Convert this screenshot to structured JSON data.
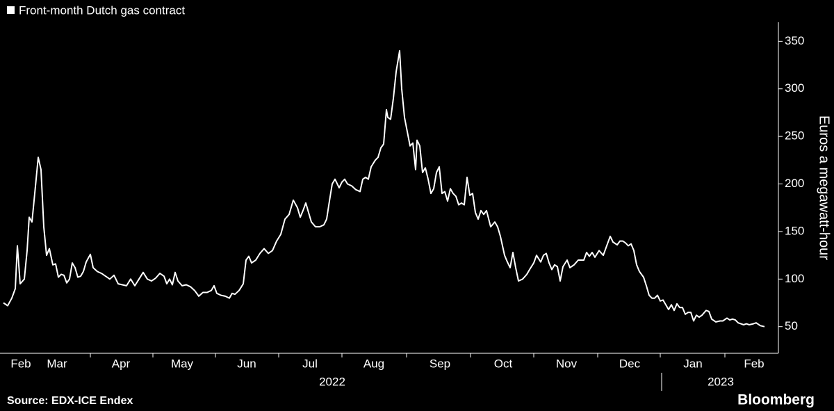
{
  "chart_data": {
    "type": "line",
    "y_axis_label": "Euros a megawatt-hour",
    "source": "Source: EDX-ICE Endex",
    "brand": "Bloomberg",
    "background": "#000000",
    "legend": "top-left",
    "x": [
      5,
      11,
      17,
      22,
      25,
      29,
      35,
      39,
      42,
      46,
      50,
      55,
      59,
      63,
      67,
      71,
      76,
      80,
      84,
      88,
      92,
      96,
      100,
      104,
      108,
      112,
      116,
      120,
      124,
      130,
      134,
      140,
      146,
      152,
      158,
      164,
      170,
      176,
      182,
      188,
      194,
      200,
      206,
      212,
      218,
      224,
      230,
      236,
      240,
      244,
      248,
      252,
      256,
      262,
      268,
      274,
      280,
      286,
      292,
      298,
      304,
      308,
      312,
      318,
      324,
      330,
      334,
      338,
      344,
      350,
      354,
      358,
      362,
      368,
      374,
      380,
      386,
      392,
      398,
      404,
      410,
      416,
      422,
      428,
      432,
      436,
      440,
      444,
      448,
      454,
      460,
      466,
      470,
      474,
      478,
      482,
      488,
      492,
      496,
      500,
      506,
      512,
      518,
      522,
      526,
      530,
      534,
      540,
      544,
      548,
      552,
      556,
      558,
      562,
      566,
      570,
      575,
      578,
      582,
      586,
      590,
      594,
      598,
      600,
      604,
      608,
      612,
      616,
      620,
      624,
      628,
      632,
      636,
      640,
      644,
      648,
      652,
      656,
      660,
      664,
      668,
      672,
      676,
      680,
      684,
      688,
      692,
      696,
      700,
      706,
      712,
      716,
      720,
      726,
      730,
      734,
      738,
      742,
      746,
      752,
      758,
      762,
      768,
      772,
      778,
      782,
      786,
      790,
      794,
      798,
      802,
      806,
      810,
      816,
      820,
      826,
      832,
      840,
      844,
      848,
      852,
      856,
      862,
      868,
      874,
      878,
      882,
      888,
      892,
      896,
      900,
      904,
      908,
      912,
      916,
      920,
      926,
      930,
      934,
      938,
      942,
      946,
      950,
      954,
      958,
      962,
      966,
      970,
      974,
      978,
      982,
      986,
      990,
      994,
      998,
      1002,
      1006,
      1010,
      1016,
      1020,
      1024,
      1030,
      1036,
      1040,
      1046,
      1050,
      1054,
      1058,
      1062,
      1066,
      1070,
      1074,
      1078,
      1084,
      1088,
      1094,
      1100
    ],
    "series": [
      {
        "name": "Front-month Dutch gas contract",
        "color": "#ffffff",
        "values": [
          75,
          72,
          80,
          90,
          135,
          95,
          100,
          130,
          165,
          160,
          190,
          228,
          215,
          155,
          125,
          132,
          115,
          116,
          102,
          105,
          104,
          96,
          100,
          117,
          112,
          102,
          103,
          108,
          118,
          126,
          112,
          108,
          106,
          103,
          100,
          104,
          95,
          94,
          93,
          100,
          93,
          100,
          107,
          100,
          98,
          101,
          106,
          103,
          95,
          100,
          94,
          107,
          98,
          93,
          94,
          92,
          88,
          82,
          86,
          86,
          88,
          93,
          85,
          83,
          82,
          80,
          85,
          84,
          88,
          95,
          120,
          124,
          117,
          120,
          127,
          132,
          127,
          130,
          140,
          147,
          163,
          168,
          183,
          175,
          165,
          172,
          180,
          170,
          160,
          155,
          155,
          157,
          163,
          182,
          200,
          205,
          196,
          202,
          205,
          200,
          198,
          194,
          192,
          205,
          207,
          205,
          218,
          225,
          228,
          238,
          242,
          278,
          270,
          268,
          290,
          318,
          340,
          300,
          270,
          255,
          240,
          243,
          215,
          246,
          240,
          212,
          217,
          205,
          190,
          195,
          212,
          218,
          190,
          192,
          182,
          195,
          190,
          187,
          178,
          180,
          178,
          207,
          188,
          190,
          170,
          163,
          172,
          168,
          172,
          155,
          160,
          155,
          145,
          125,
          118,
          112,
          128,
          112,
          98,
          100,
          105,
          110,
          117,
          125,
          118,
          125,
          127,
          117,
          110,
          115,
          113,
          98,
          113,
          120,
          112,
          115,
          120,
          120,
          128,
          124,
          128,
          123,
          130,
          125,
          137,
          145,
          139,
          136,
          140,
          140,
          138,
          135,
          137,
          130,
          115,
          108,
          102,
          93,
          83,
          80,
          80,
          83,
          77,
          78,
          73,
          68,
          73,
          67,
          74,
          70,
          70,
          63,
          65,
          65,
          56,
          62,
          60,
          62,
          67,
          66,
          58,
          55,
          56,
          56,
          59,
          57,
          58,
          57,
          54,
          53,
          52,
          53,
          52,
          53,
          54,
          51,
          50
        ]
      }
    ],
    "xlim": [
      0,
      1120
    ],
    "xticks": [
      130,
      220,
      310,
      401,
      492,
      585,
      677,
      768,
      860,
      950,
      1043
    ],
    "month_labels": [
      {
        "value": 30,
        "label": "Feb"
      },
      {
        "value": 82,
        "label": "Mar"
      },
      {
        "value": 174,
        "label": "Apr"
      },
      {
        "value": 262,
        "label": "May"
      },
      {
        "value": 355,
        "label": "Jun"
      },
      {
        "value": 446,
        "label": "Jul"
      },
      {
        "value": 538,
        "label": "Aug"
      },
      {
        "value": 633,
        "label": "Sep"
      },
      {
        "value": 724,
        "label": "Oct"
      },
      {
        "value": 815,
        "label": "Nov"
      },
      {
        "value": 906,
        "label": "Dec"
      },
      {
        "value": 997,
        "label": "Jan"
      },
      {
        "value": 1085,
        "label": "Feb"
      }
    ],
    "year_labels": [
      {
        "value": 478,
        "label": "2022"
      },
      {
        "value": 1037,
        "label": "2023"
      }
    ],
    "year_divider": 952,
    "ylim": [
      22,
      370
    ],
    "yticks": [
      50,
      100,
      150,
      200,
      250,
      300,
      350
    ]
  }
}
